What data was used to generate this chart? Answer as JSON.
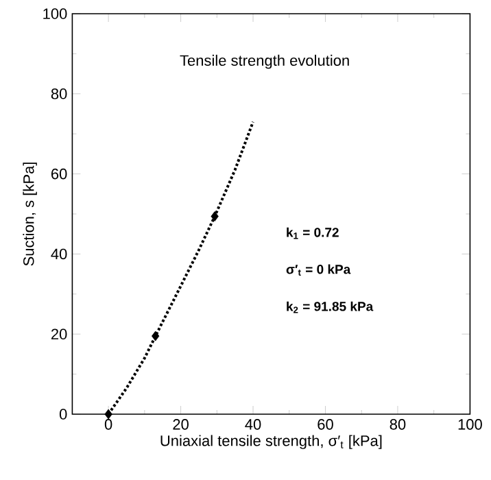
{
  "chart_data": {
    "type": "scatter",
    "title": "Tensile strength evolution",
    "xlabel": "Uniaxial tensile strength, σ′$_{t}$ [kPa]",
    "ylabel": "Suction, s [kPa]",
    "xlim": [
      -10,
      100
    ],
    "ylim": [
      0,
      100
    ],
    "xticks": [
      0,
      20,
      40,
      60,
      80,
      100
    ],
    "yticks": [
      0,
      20,
      40,
      60,
      80,
      100
    ],
    "grid": false,
    "annotations": [
      "k$_{1}$ = 0.72",
      "σ′$_{t}$ = 0 kPa",
      "k$_{2}$ = 91.85 kPa"
    ],
    "series": [
      {
        "type": "line",
        "line_style": "dotted",
        "marker": "none",
        "color": "#000000",
        "x": [
          0,
          5,
          10,
          13,
          20,
          25,
          29.4,
          35,
          40
        ],
        "values": [
          0,
          6.5,
          14,
          19.5,
          32,
          41,
          49.4,
          61,
          73
        ]
      },
      {
        "type": "scatter",
        "marker": "diamond",
        "color": "#000000",
        "x": [
          0,
          13,
          29.4
        ],
        "values": [
          0,
          19.5,
          49.4
        ]
      }
    ]
  }
}
